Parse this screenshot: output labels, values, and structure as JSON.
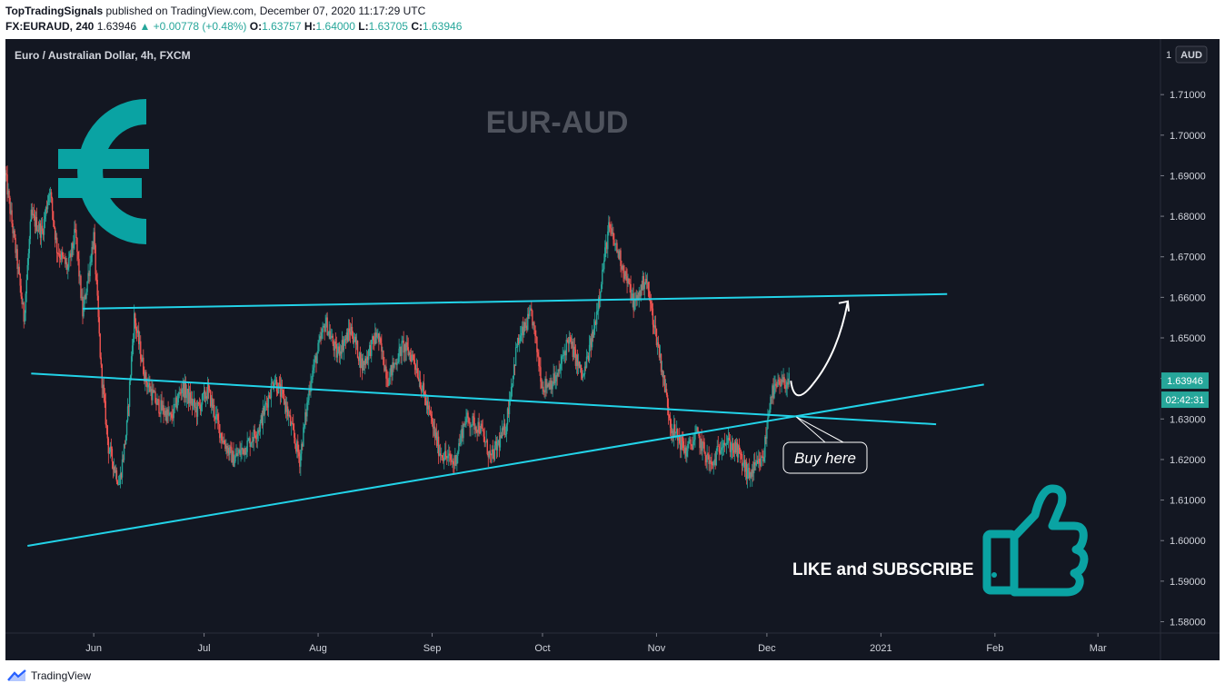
{
  "header": {
    "publisher": "TopTradingSignals",
    "published_text": "published on TradingView.com, December 07, 2020 11:17:29 UTC",
    "symbol": "FX:EURAUD, 240",
    "last_price": "1.63946",
    "change": "+0.00778 (+0.48%)",
    "o_label": "O:",
    "o_value": "1.63757",
    "h_label": "H:",
    "h_value": "1.64000",
    "l_label": "L:",
    "l_value": "1.63705",
    "c_label": "C:",
    "c_value": "1.63946"
  },
  "footer": {
    "brand": "TradingView"
  },
  "colors": {
    "background": "#131722",
    "up": "#26a69a",
    "down": "#ef5350",
    "trendline": "#22d3e8",
    "accent": "#0aa3a3"
  },
  "chart_data": {
    "type": "candlestick",
    "title": "Euro / Australian Dollar, 4h, FXCM",
    "watermark": "EUR-AUD",
    "currency_badge": "AUD",
    "axis_top_label": "1",
    "last_price_label": "1.63946",
    "countdown_label": "02:42:31",
    "y_ticks": [
      "1.71000",
      "1.70000",
      "1.69000",
      "1.68000",
      "1.67000",
      "1.66000",
      "1.65000",
      "1.64000",
      "1.63000",
      "1.62000",
      "1.61000",
      "1.60000",
      "1.59000",
      "1.58000"
    ],
    "x_ticks": [
      {
        "label": "Jun",
        "date": "2020-06-01"
      },
      {
        "label": "Jul",
        "date": "2020-07-01"
      },
      {
        "label": "Aug",
        "date": "2020-08-01"
      },
      {
        "label": "Sep",
        "date": "2020-09-01"
      },
      {
        "label": "Oct",
        "date": "2020-10-01"
      },
      {
        "label": "Nov",
        "date": "2020-11-01"
      },
      {
        "label": "Dec",
        "date": "2020-12-01"
      },
      {
        "label": "2021",
        "date": "2021-01-01"
      },
      {
        "label": "Feb",
        "date": "2021-02-01"
      },
      {
        "label": "Mar",
        "date": "2021-03-01"
      }
    ],
    "ylim": [
      1.5772,
      1.7237
    ],
    "xlim": [
      "2020-05-08",
      "2021-03-18"
    ],
    "price_path": [
      [
        "2020-05-08",
        1.69
      ],
      [
        "2020-05-11",
        1.67
      ],
      [
        "2020-05-13",
        1.655
      ],
      [
        "2020-05-15",
        1.68
      ],
      [
        "2020-05-18",
        1.676
      ],
      [
        "2020-05-20",
        1.687
      ],
      [
        "2020-05-22",
        1.672
      ],
      [
        "2020-05-25",
        1.667
      ],
      [
        "2020-05-27",
        1.676
      ],
      [
        "2020-05-29",
        1.656
      ],
      [
        "2020-06-01",
        1.675
      ],
      [
        "2020-06-03",
        1.642
      ],
      [
        "2020-06-05",
        1.623
      ],
      [
        "2020-06-08",
        1.614
      ],
      [
        "2020-06-10",
        1.628
      ],
      [
        "2020-06-12",
        1.655
      ],
      [
        "2020-06-15",
        1.64
      ],
      [
        "2020-06-18",
        1.634
      ],
      [
        "2020-06-22",
        1.63
      ],
      [
        "2020-06-25",
        1.638
      ],
      [
        "2020-06-29",
        1.632
      ],
      [
        "2020-07-02",
        1.637
      ],
      [
        "2020-07-06",
        1.625
      ],
      [
        "2020-07-09",
        1.62
      ],
      [
        "2020-07-13",
        1.624
      ],
      [
        "2020-07-16",
        1.628
      ],
      [
        "2020-07-20",
        1.64
      ],
      [
        "2020-07-23",
        1.634
      ],
      [
        "2020-07-27",
        1.62
      ],
      [
        "2020-07-30",
        1.64
      ],
      [
        "2020-08-03",
        1.654
      ],
      [
        "2020-08-06",
        1.646
      ],
      [
        "2020-08-10",
        1.652
      ],
      [
        "2020-08-13",
        1.643
      ],
      [
        "2020-08-17",
        1.651
      ],
      [
        "2020-08-20",
        1.64
      ],
      [
        "2020-08-24",
        1.648
      ],
      [
        "2020-08-27",
        1.645
      ],
      [
        "2020-08-31",
        1.632
      ],
      [
        "2020-09-03",
        1.622
      ],
      [
        "2020-09-07",
        1.619
      ],
      [
        "2020-09-10",
        1.63
      ],
      [
        "2020-09-14",
        1.628
      ],
      [
        "2020-09-17",
        1.62
      ],
      [
        "2020-09-21",
        1.628
      ],
      [
        "2020-09-24",
        1.648
      ],
      [
        "2020-09-28",
        1.656
      ],
      [
        "2020-10-01",
        1.638
      ],
      [
        "2020-10-05",
        1.64
      ],
      [
        "2020-10-08",
        1.65
      ],
      [
        "2020-10-12",
        1.64
      ],
      [
        "2020-10-15",
        1.652
      ],
      [
        "2020-10-19",
        1.677
      ],
      [
        "2020-10-22",
        1.67
      ],
      [
        "2020-10-26",
        1.658
      ],
      [
        "2020-10-29",
        1.665
      ],
      [
        "2020-11-02",
        1.645
      ],
      [
        "2020-11-05",
        1.628
      ],
      [
        "2020-11-09",
        1.622
      ],
      [
        "2020-11-12",
        1.626
      ],
      [
        "2020-11-16",
        1.618
      ],
      [
        "2020-11-19",
        1.625
      ],
      [
        "2020-11-23",
        1.622
      ],
      [
        "2020-11-26",
        1.616
      ],
      [
        "2020-11-30",
        1.62
      ],
      [
        "2020-12-02",
        1.636
      ],
      [
        "2020-12-04",
        1.638
      ],
      [
        "2020-12-07",
        1.6395
      ]
    ],
    "trendlines": [
      {
        "name": "resistance",
        "from": [
          "2020-05-29",
          1.6572
        ],
        "to": [
          "2021-01-19",
          1.6608
        ]
      },
      {
        "name": "descending",
        "from": [
          "2020-05-15",
          1.6412
        ],
        "to": [
          "2021-01-16",
          1.6287
        ]
      },
      {
        "name": "ascending",
        "from": [
          "2020-05-14",
          1.5987
        ],
        "to": [
          "2021-01-29",
          1.6385
        ]
      }
    ],
    "arrow": {
      "from": [
        "2020-12-09",
        1.6345
      ],
      "to": [
        "2020-12-23",
        1.659
      ]
    },
    "callout": {
      "text": "Buy here",
      "point": [
        "2020-12-09",
        1.6305
      ]
    },
    "promo": {
      "text": "LIKE and SUBSCRIBE"
    }
  }
}
